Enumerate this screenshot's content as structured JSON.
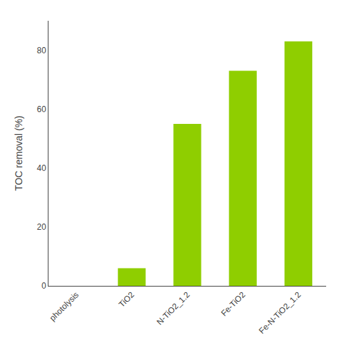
{
  "chart_data": {
    "type": "bar",
    "categories": [
      "photolysis",
      "TiO2",
      "N-TiO2_1.2",
      "Fe-TiO2",
      "Fe-N-TiO2_1.2"
    ],
    "values": [
      0,
      6,
      55,
      73,
      83
    ],
    "color": "#8fce00",
    "ylabel": "TOC removal (%)",
    "ylim": [
      0,
      90
    ],
    "yticks": [
      0,
      20,
      40,
      60,
      80
    ],
    "grid": false
  }
}
